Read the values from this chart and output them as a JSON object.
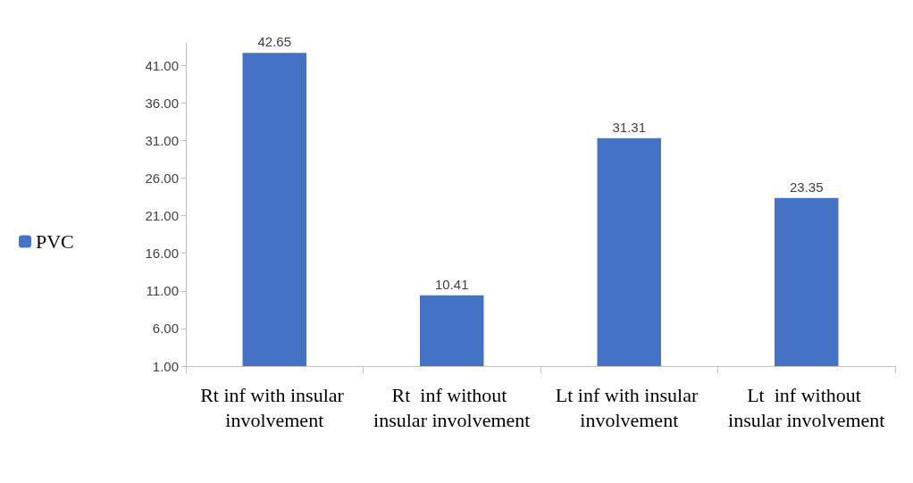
{
  "chart_data": {
    "type": "bar",
    "categories": [
      "Rt inf with insular involvement",
      "Rt  inf without insular involvement",
      "Lt inf with insular involvement",
      "Lt  inf without insular involvement"
    ],
    "series": [
      {
        "name": "PVC",
        "color": "#4472c4",
        "values": [
          42.65,
          10.41,
          31.31,
          23.35
        ]
      }
    ],
    "ylim": [
      1,
      44
    ],
    "yticks": [
      {
        "value": 1,
        "label": "1.00"
      },
      {
        "value": 6,
        "label": "6.00"
      },
      {
        "value": 11,
        "label": "11.00"
      },
      {
        "value": 16,
        "label": "16.00"
      },
      {
        "value": 21,
        "label": "21.00"
      },
      {
        "value": 26,
        "label": "26.00"
      },
      {
        "value": 31,
        "label": "31.00"
      },
      {
        "value": 36,
        "label": "36.00"
      },
      {
        "value": 41,
        "label": "41.00"
      }
    ],
    "data_labels": true,
    "grid": false,
    "legend": "left"
  }
}
